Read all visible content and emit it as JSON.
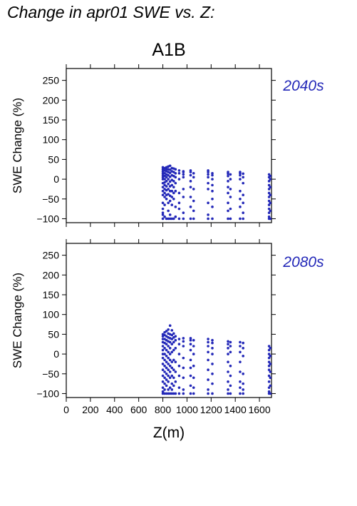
{
  "title": "Change in apr01 SWE vs. Z:",
  "scenario": "A1B",
  "xlabel": "Z(m)",
  "ylabel": "SWE Change (%)",
  "x_tick_labels": [
    "0",
    "200",
    "400",
    "600",
    "800",
    "1000",
    "1200",
    "1400",
    "1600"
  ],
  "y_tick_labels": [
    "250",
    "200",
    "150",
    "100",
    "50",
    "0",
    "−50",
    "−100"
  ],
  "marker_color": "#2328b8",
  "chart_data": [
    {
      "type": "scatter",
      "panel_label": "2040s",
      "xlabel": "Z(m)",
      "ylabel": "SWE Change (%)",
      "xlim": [
        0,
        1700
      ],
      "ylim": [
        -110,
        280
      ],
      "clusters": [
        {
          "x": 800,
          "y": [
            -100,
            -90,
            -85,
            -75,
            -60,
            -40,
            -30,
            -20,
            -10,
            0,
            5,
            10,
            15,
            20,
            25,
            30
          ]
        },
        {
          "x": 815,
          "y": [
            -95,
            -65,
            -45,
            -35,
            -25,
            -15,
            -8,
            0,
            8,
            15,
            22,
            28
          ]
        },
        {
          "x": 830,
          "y": [
            -100,
            -50,
            -40,
            -28,
            -18,
            -5,
            5,
            12,
            20,
            26,
            30
          ]
        },
        {
          "x": 845,
          "y": [
            -100,
            -80,
            -60,
            -38,
            -25,
            -12,
            0,
            10,
            18,
            25,
            32
          ]
        },
        {
          "x": 860,
          "y": [
            -100,
            -90,
            -55,
            -42,
            -30,
            -18,
            -6,
            6,
            16,
            24,
            34
          ]
        },
        {
          "x": 875,
          "y": [
            -100,
            -65,
            -45,
            -30,
            -15,
            -2,
            10,
            20,
            28
          ]
        },
        {
          "x": 890,
          "y": [
            -100,
            -50,
            -35,
            -20,
            -5,
            8,
            18,
            27
          ]
        },
        {
          "x": 905,
          "y": [
            -95,
            -70,
            -30,
            -10,
            5,
            15,
            25
          ]
        },
        {
          "x": 935,
          "y": [
            -100,
            -75,
            -60,
            -35,
            0,
            15,
            22
          ]
        },
        {
          "x": 970,
          "y": [
            -100,
            -85,
            -45,
            -25,
            5,
            12,
            18,
            20
          ]
        },
        {
          "x": 1030,
          "y": [
            -100,
            -70,
            -45,
            -20,
            -5,
            10,
            18,
            22
          ]
        },
        {
          "x": 1055,
          "y": [
            -100,
            -80,
            -55,
            -25,
            5,
            15
          ]
        },
        {
          "x": 1175,
          "y": [
            -100,
            -90,
            -60,
            -25,
            -10,
            5,
            12,
            18,
            22
          ]
        },
        {
          "x": 1210,
          "y": [
            -100,
            -70,
            -50,
            -30,
            -15,
            0,
            10,
            15
          ]
        },
        {
          "x": 1340,
          "y": [
            -100,
            -80,
            -60,
            -35,
            -20,
            -5,
            8,
            14,
            18
          ]
        },
        {
          "x": 1360,
          "y": [
            -100,
            -75,
            -45,
            -25,
            0,
            12
          ]
        },
        {
          "x": 1440,
          "y": [
            -100,
            -70,
            -50,
            -30,
            0,
            10,
            15,
            18
          ]
        },
        {
          "x": 1465,
          "y": [
            -100,
            -85,
            -60,
            -40,
            -10,
            5,
            14
          ]
        },
        {
          "x": 1680,
          "y": [
            -100,
            -95,
            -85,
            -75,
            -65,
            -55,
            -45,
            -35,
            -25,
            -15,
            -5,
            5,
            12
          ]
        },
        {
          "x": 1690,
          "y": [
            -100,
            -80,
            -60,
            -40,
            -20,
            0,
            8
          ]
        }
      ]
    },
    {
      "type": "scatter",
      "panel_label": "2080s",
      "xlabel": "Z(m)",
      "ylabel": "SWE Change (%)",
      "xlim": [
        0,
        1700
      ],
      "ylim": [
        -110,
        280
      ],
      "clusters": [
        {
          "x": 800,
          "y": [
            -100,
            -95,
            -85,
            -70,
            -55,
            -40,
            -25,
            -10,
            0,
            10,
            20,
            30,
            38,
            45,
            50
          ]
        },
        {
          "x": 815,
          "y": [
            -100,
            -90,
            -75,
            -60,
            -45,
            -30,
            -15,
            0,
            15,
            28,
            38,
            48,
            55
          ]
        },
        {
          "x": 830,
          "y": [
            -100,
            -80,
            -65,
            -50,
            -35,
            -20,
            -5,
            10,
            25,
            35,
            45,
            58
          ]
        },
        {
          "x": 845,
          "y": [
            -100,
            -90,
            -70,
            -55,
            -40,
            -25,
            -10,
            5,
            20,
            32,
            42,
            52,
            62
          ]
        },
        {
          "x": 860,
          "y": [
            -100,
            -85,
            -60,
            -45,
            -30,
            -15,
            0,
            15,
            30,
            40,
            50,
            72
          ]
        },
        {
          "x": 875,
          "y": [
            -100,
            -90,
            -75,
            -55,
            -35,
            -20,
            5,
            25,
            38,
            48,
            60
          ]
        },
        {
          "x": 890,
          "y": [
            -100,
            -80,
            -60,
            -40,
            -15,
            10,
            30,
            42,
            52
          ]
        },
        {
          "x": 905,
          "y": [
            -100,
            -70,
            -45,
            -20,
            15,
            35,
            45
          ]
        },
        {
          "x": 935,
          "y": [
            -100,
            -85,
            -55,
            -30,
            0,
            25,
            38
          ]
        },
        {
          "x": 970,
          "y": [
            -100,
            -90,
            -60,
            -35,
            -10,
            20,
            32,
            40
          ]
        },
        {
          "x": 1030,
          "y": [
            -100,
            -80,
            -55,
            -35,
            -15,
            10,
            25,
            35,
            40
          ]
        },
        {
          "x": 1055,
          "y": [
            -100,
            -85,
            -60,
            -30,
            0,
            20,
            35
          ]
        },
        {
          "x": 1175,
          "y": [
            -100,
            -90,
            -65,
            -40,
            -15,
            5,
            20,
            30,
            38
          ]
        },
        {
          "x": 1210,
          "y": [
            -100,
            -75,
            -50,
            -25,
            0,
            15,
            28,
            35
          ]
        },
        {
          "x": 1340,
          "y": [
            -100,
            -90,
            -70,
            -45,
            -20,
            0,
            15,
            25,
            32
          ]
        },
        {
          "x": 1360,
          "y": [
            -100,
            -80,
            -55,
            -30,
            5,
            20,
            30
          ]
        },
        {
          "x": 1440,
          "y": [
            -100,
            -85,
            -70,
            -45,
            -20,
            5,
            20,
            30
          ]
        },
        {
          "x": 1465,
          "y": [
            -100,
            -90,
            -75,
            -50,
            -5,
            15,
            28
          ]
        },
        {
          "x": 1680,
          "y": [
            -100,
            -95,
            -85,
            -70,
            -55,
            -40,
            -30,
            -20,
            -10,
            0,
            10,
            20
          ]
        },
        {
          "x": 1690,
          "y": [
            -100,
            -80,
            -60,
            -45,
            -25,
            -5,
            15
          ]
        }
      ]
    }
  ]
}
